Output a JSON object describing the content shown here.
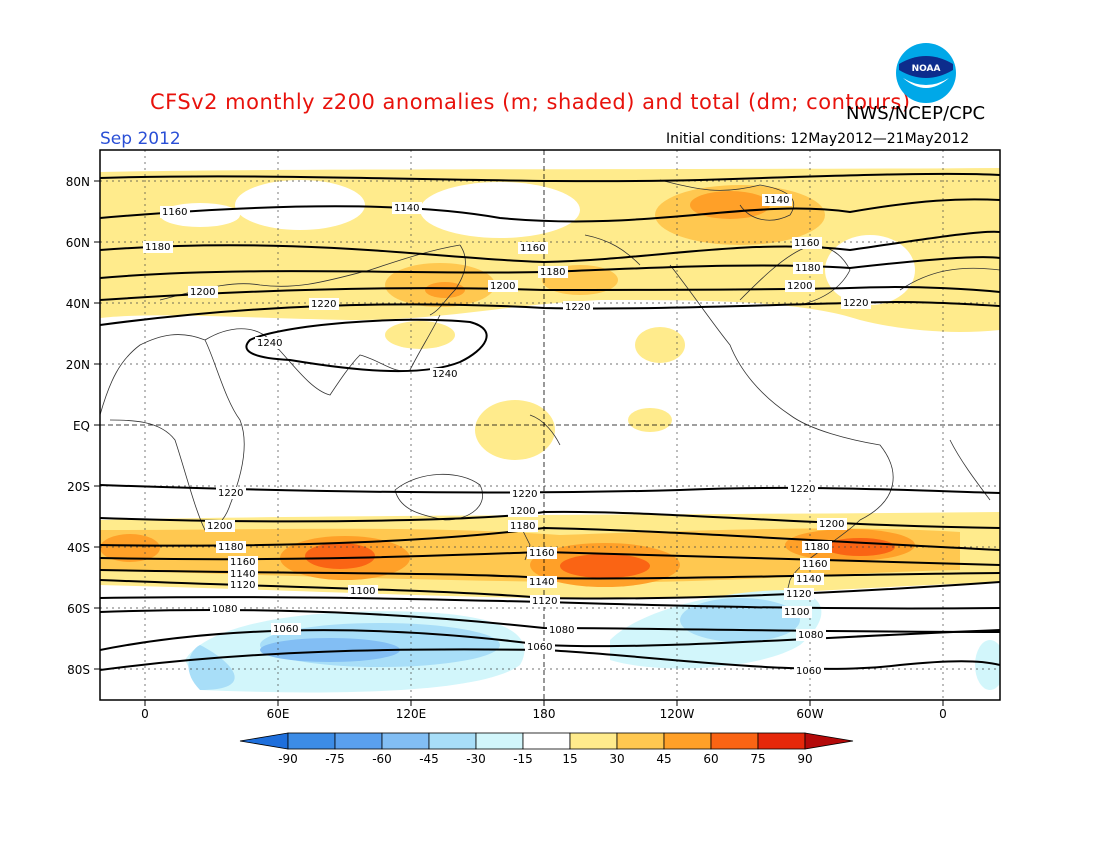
{
  "title": "CFSv2 monthly z200 anomalies (m; shaded) and total (dm; contours)",
  "agency": "NWS/NCEP/CPC",
  "month": "Sep 2012",
  "initial_conditions": "Initial conditions: 12May2012—21May2012",
  "logo_icon": "noaa-logo-icon",
  "lat_labels": [
    "80N",
    "60N",
    "40N",
    "20N",
    "EQ",
    "20S",
    "40S",
    "60S",
    "80S"
  ],
  "lon_labels": [
    "0",
    "60E",
    "120E",
    "180",
    "120W",
    "60W",
    "0"
  ],
  "colorbar": {
    "labels": [
      "-90",
      "-75",
      "-60",
      "-45",
      "-30",
      "-15",
      "15",
      "30",
      "45",
      "60",
      "75",
      "90"
    ],
    "colors": [
      "#1e6fdc",
      "#3c8ce6",
      "#5aa0ee",
      "#82bef4",
      "#a8def8",
      "#d2f6fb",
      "#ffffff",
      "#ffeb8c",
      "#ffc850",
      "#ffa028",
      "#fa6414",
      "#e6280a",
      "#b40a0a"
    ]
  },
  "contours": [
    {
      "label": "1140",
      "positions": [
        "1140",
        "1140"
      ]
    },
    {
      "label": "1160"
    },
    {
      "label": "1180"
    },
    {
      "label": "1200"
    },
    {
      "label": "1220"
    },
    {
      "label": "1240"
    },
    {
      "label": "1100"
    },
    {
      "label": "1080"
    },
    {
      "label": "1060"
    },
    {
      "label": "1120"
    }
  ]
}
